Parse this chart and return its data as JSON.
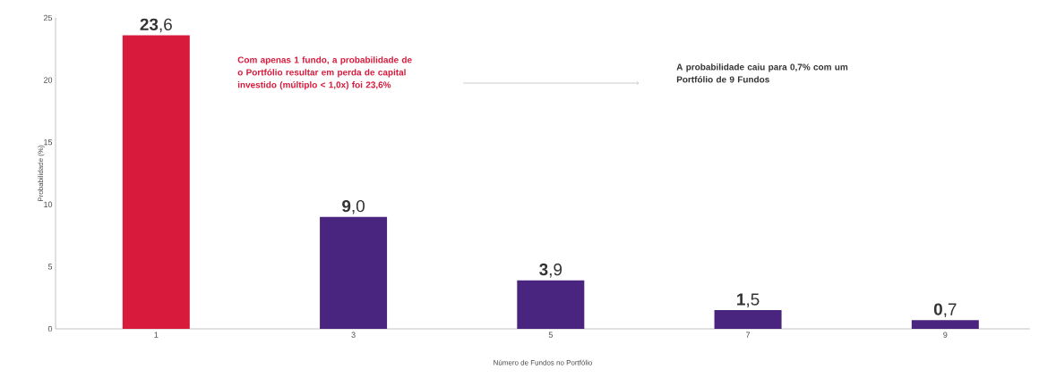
{
  "chart_data": {
    "type": "bar",
    "xlabel": "Número de Fundos no Portfólio",
    "ylabel": "Probabilidade (%)",
    "categories": [
      "1",
      "3",
      "5",
      "7",
      "9"
    ],
    "values": [
      23.6,
      9.0,
      3.9,
      1.5,
      0.7
    ],
    "value_labels": [
      "**23**,6",
      "**9**,0",
      "**3**,9",
      "**1**,5",
      "**0**,7"
    ],
    "colors": [
      "#d81a3c",
      "#4a2580",
      "#4a2580",
      "#4a2580",
      "#4a2580"
    ],
    "ylim": [
      0,
      25
    ],
    "yticks": [
      0,
      5,
      10,
      15,
      20,
      25
    ],
    "grid": false,
    "annotations": [
      "Com apenas 1 fundo, a probabilidade de o Portfólio resultar em perda de capital investido (múltiplo < 1,0x) foi 23,6%",
      "A probabilidade caiu para 0,7% com um Portfólio de 9 Fundos"
    ]
  }
}
